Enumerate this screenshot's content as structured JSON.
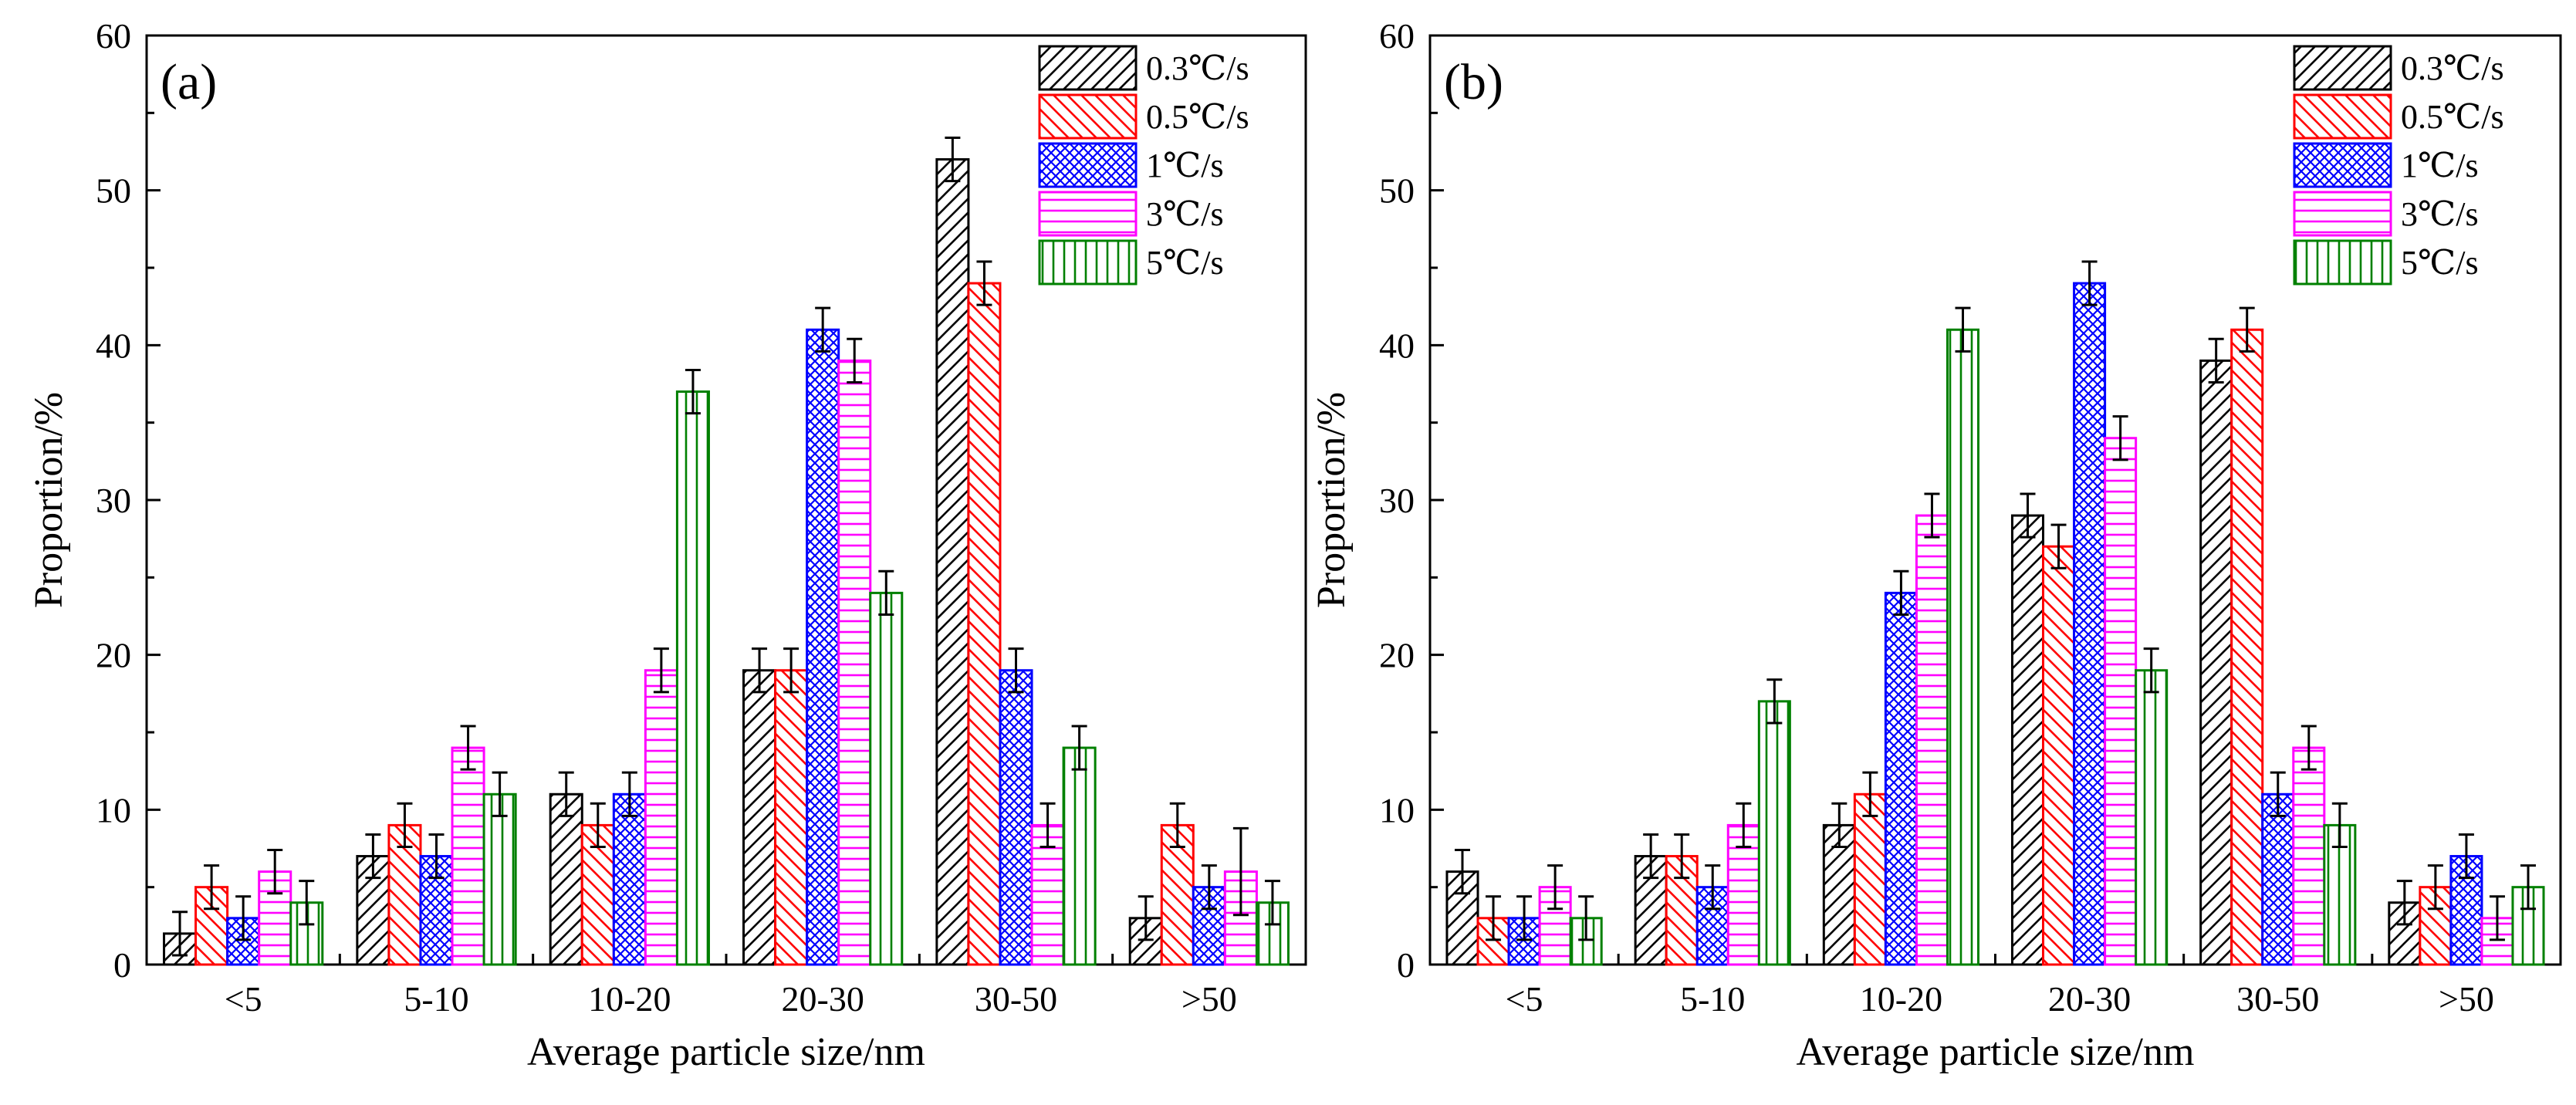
{
  "chart_data": [
    {
      "type": "bar",
      "panel_label": "(a)",
      "xlabel": "Average particle size/nm",
      "ylabel": "Proportion/%",
      "ylim": [
        0,
        60
      ],
      "yticks": [
        "0",
        "10",
        "20",
        "30",
        "40",
        "50",
        "60"
      ],
      "categories": [
        "<5",
        "5-10",
        "10-20",
        "20-30",
        "30-50",
        ">50"
      ],
      "legend_position": "top-right",
      "series": [
        {
          "name": "0.3℃/s",
          "color": "#000000",
          "pattern": "diag-right",
          "values": [
            2,
            7,
            11,
            19,
            52,
            3
          ],
          "errors": [
            1.4,
            1.4,
            1.4,
            1.4,
            1.4,
            1.4
          ]
        },
        {
          "name": "0.5℃/s",
          "color": "#ff0000",
          "pattern": "diag-left",
          "values": [
            5,
            9,
            9,
            19,
            44,
            9
          ],
          "errors": [
            1.4,
            1.4,
            1.4,
            1.4,
            1.4,
            1.4
          ]
        },
        {
          "name": "1℃/s",
          "color": "#0000ff",
          "pattern": "crosshatch",
          "values": [
            3,
            7,
            11,
            41,
            19,
            5
          ],
          "errors": [
            1.4,
            1.4,
            1.4,
            1.4,
            1.4,
            1.4
          ]
        },
        {
          "name": "3℃/s",
          "color": "#ff00ff",
          "pattern": "horizontal",
          "values": [
            6,
            14,
            19,
            39,
            9,
            6
          ],
          "errors": [
            1.4,
            1.4,
            1.4,
            1.4,
            1.4,
            2.8
          ]
        },
        {
          "name": "5℃/s",
          "color": "#008000",
          "pattern": "vertical",
          "values": [
            4,
            11,
            37,
            24,
            14,
            4
          ],
          "errors": [
            1.4,
            1.4,
            1.4,
            1.4,
            1.4,
            1.4
          ]
        }
      ]
    },
    {
      "type": "bar",
      "panel_label": "(b)",
      "xlabel": "Average particle size/nm",
      "ylabel": "Proportion/%",
      "ylim": [
        0,
        60
      ],
      "yticks": [
        "0",
        "10",
        "20",
        "30",
        "40",
        "50",
        "60"
      ],
      "categories": [
        "<5",
        "5-10",
        "10-20",
        "20-30",
        "30-50",
        ">50"
      ],
      "legend_position": "top-right",
      "series": [
        {
          "name": "0.3℃/s",
          "color": "#000000",
          "pattern": "diag-right",
          "values": [
            6,
            7,
            9,
            29,
            39,
            4
          ],
          "errors": [
            1.4,
            1.4,
            1.4,
            1.4,
            1.4,
            1.4
          ]
        },
        {
          "name": "0.5℃/s",
          "color": "#ff0000",
          "pattern": "diag-left",
          "values": [
            3,
            7,
            11,
            27,
            41,
            5
          ],
          "errors": [
            1.4,
            1.4,
            1.4,
            1.4,
            1.4,
            1.4
          ]
        },
        {
          "name": "1℃/s",
          "color": "#0000ff",
          "pattern": "crosshatch",
          "values": [
            3,
            5,
            24,
            44,
            11,
            7
          ],
          "errors": [
            1.4,
            1.4,
            1.4,
            1.4,
            1.4,
            1.4
          ]
        },
        {
          "name": "3℃/s",
          "color": "#ff00ff",
          "pattern": "horizontal",
          "values": [
            5,
            9,
            29,
            34,
            14,
            3
          ],
          "errors": [
            1.4,
            1.4,
            1.4,
            1.4,
            1.4,
            1.4
          ]
        },
        {
          "name": "5℃/s",
          "color": "#008000",
          "pattern": "vertical",
          "values": [
            3,
            17,
            41,
            19,
            9,
            5
          ],
          "errors": [
            1.4,
            1.4,
            1.4,
            1.4,
            1.4,
            1.4
          ]
        }
      ]
    }
  ]
}
